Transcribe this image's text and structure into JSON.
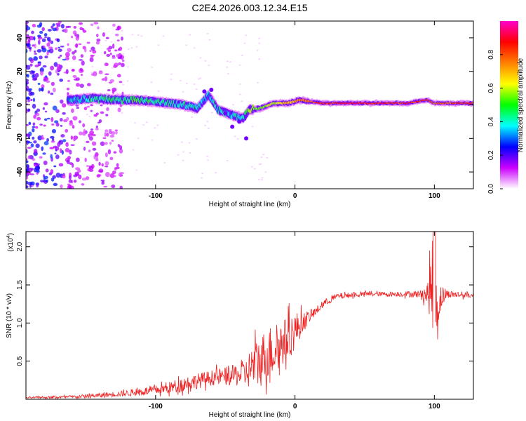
{
  "title": "C2E4.2026.003.12.34.E15",
  "chart_data": [
    {
      "type": "heatmap",
      "xlabel": "Height of straight line (km)",
      "ylabel": "Frequency (Hz)",
      "xlim": [
        -193,
        128
      ],
      "ylim": [
        -50,
        50
      ],
      "x_ticks": [
        -100,
        0,
        100
      ],
      "x_tick_labels": [
        "-100",
        "0",
        "100"
      ],
      "y_ticks": [
        -40,
        -20,
        0,
        20,
        40
      ],
      "y_tick_labels": [
        "-40",
        "-20",
        "0",
        "20",
        "40"
      ],
      "colorbar": {
        "label": "Normalized spectral amplitude",
        "range": [
          0,
          1
        ],
        "ticks": [
          0.0,
          0.2,
          0.4,
          0.6,
          0.8
        ],
        "tick_labels": [
          "0.0",
          "0.2",
          "0.4",
          "0.6",
          "0.8"
        ],
        "colors": [
          "#ffffff",
          "#cc00ff",
          "#0000ff",
          "#00ffff",
          "#00ff00",
          "#ffff00",
          "#ff8000",
          "#ff0000",
          "#ff00cc"
        ]
      },
      "ridge": [
        {
          "x": -160,
          "f": 3,
          "amp": 0.35
        },
        {
          "x": -145,
          "f": 4,
          "amp": 0.42
        },
        {
          "x": -130,
          "f": 3,
          "amp": 0.45
        },
        {
          "x": -115,
          "f": 3,
          "amp": 0.45
        },
        {
          "x": -100,
          "f": 2,
          "amp": 0.45
        },
        {
          "x": -90,
          "f": 1,
          "amp": 0.42
        },
        {
          "x": -80,
          "f": 0,
          "amp": 0.4
        },
        {
          "x": -70,
          "f": -2,
          "amp": 0.4
        },
        {
          "x": -62,
          "f": 6,
          "amp": 0.35
        },
        {
          "x": -55,
          "f": -3,
          "amp": 0.4
        },
        {
          "x": -45,
          "f": -6,
          "amp": 0.38
        },
        {
          "x": -37,
          "f": -8,
          "amp": 0.38
        },
        {
          "x": -33,
          "f": -3,
          "amp": 0.55
        },
        {
          "x": -25,
          "f": -2,
          "amp": 0.55
        },
        {
          "x": -15,
          "f": 1,
          "amp": 0.6
        },
        {
          "x": -5,
          "f": 1,
          "amp": 0.7
        },
        {
          "x": 3,
          "f": 3,
          "amp": 0.75
        },
        {
          "x": 20,
          "f": 1,
          "amp": 0.85
        },
        {
          "x": 40,
          "f": 1,
          "amp": 0.88
        },
        {
          "x": 60,
          "f": 1,
          "amp": 0.85
        },
        {
          "x": 80,
          "f": 1,
          "amp": 0.85
        },
        {
          "x": 95,
          "f": 3,
          "amp": 0.8
        },
        {
          "x": 100,
          "f": 1,
          "amp": 0.75
        },
        {
          "x": 115,
          "f": 1,
          "amp": 0.82
        },
        {
          "x": 128,
          "f": 1,
          "amp": 0.85
        }
      ]
    },
    {
      "type": "line",
      "xlabel": "Height of straight line (km)",
      "ylabel": "SNR (10 * v/v)",
      "scale_label": "(x10^4)",
      "scale_base": "(x10",
      "scale_exp": "4",
      "scale_close": ")",
      "xlim": [
        -193,
        128
      ],
      "ylim": [
        0,
        2.2
      ],
      "x_ticks": [
        -100,
        0,
        100
      ],
      "x_tick_labels": [
        "-100",
        "0",
        "100"
      ],
      "y_ticks": [
        0.5,
        1.0,
        1.5,
        2.0
      ],
      "y_tick_labels": [
        "0.5",
        "1.0",
        "1.5",
        "2.0"
      ],
      "color": "#ee2222",
      "envelope": {
        "x": [
          -193,
          -160,
          -140,
          -120,
          -100,
          -90,
          -80,
          -70,
          -60,
          -50,
          -40,
          -35,
          -30,
          -25,
          -20,
          -15,
          -10,
          -5,
          0,
          5,
          10,
          15,
          20,
          30,
          50,
          70,
          90,
          95,
          98,
          100,
          102,
          105,
          110,
          128
        ],
        "mean": [
          0.02,
          0.03,
          0.05,
          0.08,
          0.12,
          0.15,
          0.2,
          0.24,
          0.28,
          0.3,
          0.32,
          0.34,
          0.45,
          0.5,
          0.6,
          0.65,
          0.72,
          0.8,
          0.9,
          1.0,
          1.08,
          1.15,
          1.25,
          1.35,
          1.38,
          1.38,
          1.38,
          1.38,
          1.45,
          1.35,
          1.2,
          1.35,
          1.38,
          1.36
        ],
        "noise": [
          0.01,
          0.02,
          0.03,
          0.04,
          0.06,
          0.08,
          0.1,
          0.1,
          0.1,
          0.12,
          0.15,
          0.2,
          0.3,
          0.35,
          0.35,
          0.35,
          0.3,
          0.3,
          0.25,
          0.15,
          0.08,
          0.06,
          0.05,
          0.04,
          0.03,
          0.03,
          0.05,
          0.15,
          0.5,
          0.7,
          0.5,
          0.15,
          0.05,
          0.03
        ]
      }
    }
  ]
}
